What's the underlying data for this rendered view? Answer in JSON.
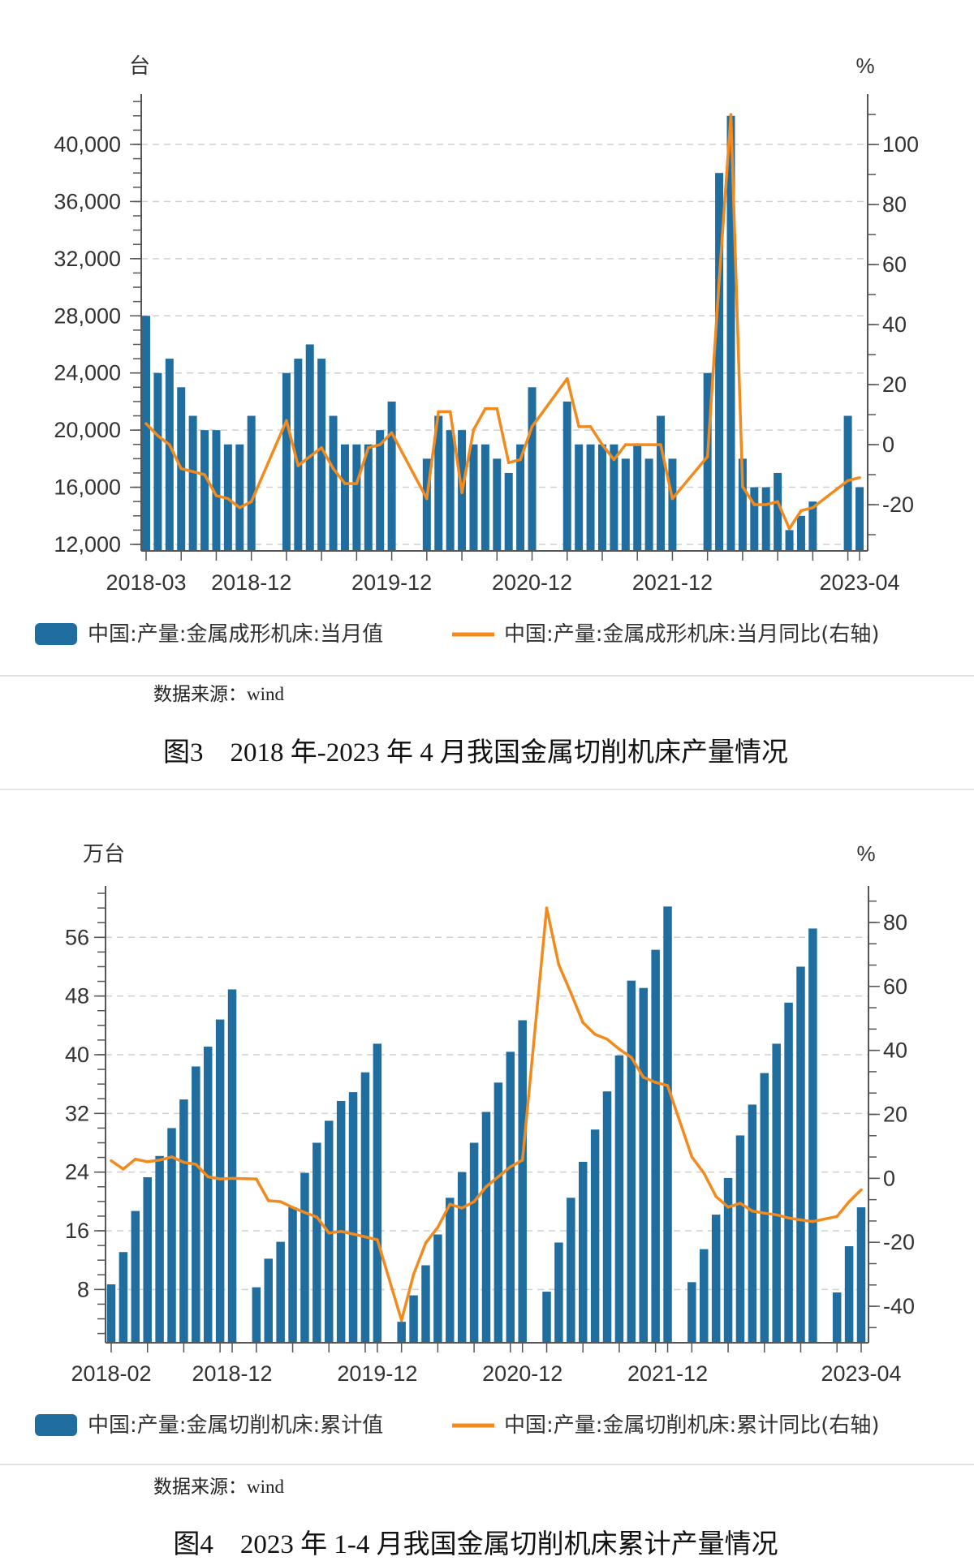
{
  "colors": {
    "bar": "#1f6e9f",
    "line": "#f28a1d",
    "grid": "#d0d0d0",
    "axis": "#555555"
  },
  "chart_data": [
    {
      "type": "bar+line",
      "left_unit": "台",
      "right_unit": "%",
      "ylim_left": [
        11545,
        43520
      ],
      "ylim_right": [
        -35.4,
        116.8
      ],
      "left_ticks": [
        {
          "value": 12000,
          "label": "12,000"
        },
        {
          "value": 16000,
          "label": "16,000"
        },
        {
          "value": 20000,
          "label": "20,000"
        },
        {
          "value": 24000,
          "label": "24,000"
        },
        {
          "value": 28000,
          "label": "28,000"
        },
        {
          "value": 32000,
          "label": "32,000"
        },
        {
          "value": 36000,
          "label": "36,000"
        },
        {
          "value": 40000,
          "label": "40,000"
        }
      ],
      "right_ticks": [
        {
          "value": -20,
          "label": "-20"
        },
        {
          "value": 0,
          "label": "0"
        },
        {
          "value": 20,
          "label": "20"
        },
        {
          "value": 40,
          "label": "40"
        },
        {
          "value": 60,
          "label": "60"
        },
        {
          "value": 80,
          "label": "80"
        },
        {
          "value": 100,
          "label": "100"
        }
      ],
      "x_labels": [
        "2018-03",
        "2018-12",
        "2019-12",
        "2020-12",
        "2021-12",
        "2023-04"
      ],
      "grid": true,
      "legend_position": "bottom",
      "x": [
        "2018-03",
        "2018-04",
        "2018-05",
        "2018-06",
        "2018-07",
        "2018-08",
        "2018-09",
        "2018-10",
        "2018-11",
        "2018-12",
        "2019-03",
        "2019-04",
        "2019-05",
        "2019-06",
        "2019-07",
        "2019-08",
        "2019-09",
        "2019-10",
        "2019-11",
        "2019-12",
        "2020-03",
        "2020-04",
        "2020-05",
        "2020-06",
        "2020-07",
        "2020-08",
        "2020-09",
        "2020-10",
        "2020-11",
        "2020-12",
        "2021-03",
        "2021-04",
        "2021-05",
        "2021-06",
        "2021-07",
        "2021-08",
        "2021-09",
        "2021-10",
        "2021-11",
        "2021-12",
        "2022-03",
        "2022-04",
        "2022-05",
        "2022-06",
        "2022-07",
        "2022-08",
        "2022-09",
        "2022-10",
        "2022-11",
        "2022-12",
        "2023-03",
        "2023-04"
      ],
      "series": [
        {
          "name": "中国:产量:金属成形机床:当月值",
          "type": "bar",
          "axis": "left",
          "values": [
            28000,
            24000,
            25000,
            23000,
            21000,
            20000,
            20000,
            19000,
            19000,
            21000,
            24000,
            25000,
            26000,
            25000,
            21000,
            19000,
            19000,
            19000,
            20000,
            22000,
            18000,
            21000,
            20000,
            20000,
            19000,
            19000,
            18000,
            17000,
            19000,
            23000,
            22000,
            19000,
            19000,
            19000,
            19000,
            18000,
            19000,
            18000,
            21000,
            18000,
            24000,
            38000,
            42000,
            18000,
            16000,
            16000,
            17000,
            13000,
            14000,
            15000,
            21000,
            16000
          ]
        },
        {
          "name": "中国:产量:金属成形机床:当月同比(右轴)",
          "type": "line",
          "axis": "right",
          "values": [
            7,
            3,
            0,
            -8,
            -9,
            -10,
            -17,
            -18,
            -21,
            -19,
            8,
            -7,
            -4,
            -1,
            -8,
            -13,
            -13,
            -1,
            0,
            4,
            -18,
            11,
            11,
            -16,
            5,
            12,
            12,
            -6,
            -5,
            6,
            22,
            6,
            6,
            0,
            -5,
            0,
            0,
            0,
            0,
            -18,
            -4,
            55,
            110,
            -14,
            -20,
            -20,
            -19,
            -28,
            -22,
            -21,
            -12,
            -11
          ]
        }
      ],
      "source": "数据来源：wind",
      "caption": "图3　2018 年-2023 年 4 月我国金属切削机床产量情况"
    },
    {
      "type": "bar+line",
      "left_unit": "万台",
      "right_unit": "%",
      "ylim_left": [
        0.74,
        63.0
      ],
      "ylim_right": [
        -51.4,
        91.4
      ],
      "left_ticks": [
        {
          "value": 8,
          "label": "8"
        },
        {
          "value": 16,
          "label": "16"
        },
        {
          "value": 24,
          "label": "24"
        },
        {
          "value": 32,
          "label": "32"
        },
        {
          "value": 40,
          "label": "40"
        },
        {
          "value": 48,
          "label": "48"
        },
        {
          "value": 56,
          "label": "56"
        }
      ],
      "right_ticks": [
        {
          "value": -40,
          "label": "-40"
        },
        {
          "value": -20,
          "label": "-20"
        },
        {
          "value": 0,
          "label": "0"
        },
        {
          "value": 20,
          "label": "20"
        },
        {
          "value": 40,
          "label": "40"
        },
        {
          "value": 60,
          "label": "60"
        },
        {
          "value": 80,
          "label": "80"
        }
      ],
      "x_labels": [
        "2018-02",
        "2018-12",
        "2019-12",
        "2020-12",
        "2021-12",
        "2023-04"
      ],
      "grid": true,
      "legend_position": "bottom",
      "x": [
        "2018-02",
        "2018-03",
        "2018-04",
        "2018-05",
        "2018-06",
        "2018-07",
        "2018-08",
        "2018-09",
        "2018-10",
        "2018-11",
        "2018-12",
        "2019-02",
        "2019-03",
        "2019-04",
        "2019-05",
        "2019-06",
        "2019-07",
        "2019-08",
        "2019-09",
        "2019-10",
        "2019-11",
        "2019-12",
        "2020-02",
        "2020-03",
        "2020-04",
        "2020-05",
        "2020-06",
        "2020-07",
        "2020-08",
        "2020-09",
        "2020-10",
        "2020-11",
        "2020-12",
        "2021-02",
        "2021-03",
        "2021-04",
        "2021-05",
        "2021-06",
        "2021-07",
        "2021-08",
        "2021-09",
        "2021-10",
        "2021-11",
        "2021-12",
        "2022-02",
        "2022-03",
        "2022-04",
        "2022-05",
        "2022-06",
        "2022-07",
        "2022-08",
        "2022-09",
        "2022-10",
        "2022-11",
        "2022-12",
        "2023-02",
        "2023-03",
        "2023-04"
      ],
      "series": [
        {
          "name": "中国:产量:金属切削机床:累计值",
          "type": "bar",
          "axis": "left",
          "values": [
            8.7,
            13.1,
            18.7,
            23.3,
            26.2,
            30.0,
            33.9,
            38.4,
            41.1,
            44.8,
            48.9,
            8.3,
            12.2,
            14.5,
            19.2,
            23.9,
            28.0,
            31.0,
            33.7,
            34.9,
            37.6,
            41.5,
            3.6,
            7.2,
            11.3,
            15.5,
            20.5,
            24.0,
            28.0,
            32.2,
            36.2,
            40.4,
            44.7,
            7.7,
            14.4,
            20.5,
            25.4,
            29.8,
            35.0,
            39.9,
            50.1,
            49.1,
            54.3,
            60.2,
            9.0,
            13.5,
            18.2,
            23.2,
            29.0,
            33.2,
            37.5,
            41.5,
            47.1,
            52.0,
            57.2,
            7.6,
            13.9,
            19.2
          ]
        },
        {
          "name": "中国:产量:金属切削机床:累计同比(右轴)",
          "type": "line",
          "axis": "right",
          "values": [
            5.5,
            2.9,
            6.0,
            5.2,
            5.7,
            6.7,
            5.0,
            4.4,
            0.5,
            -0.2,
            0,
            -0.2,
            -7.0,
            -7.3,
            -9.1,
            -10.7,
            -12.1,
            -17.1,
            -16.6,
            -17.4,
            -18.3,
            -19.2,
            -44.4,
            -30.0,
            -20.2,
            -15.3,
            -8.1,
            -9.3,
            -7.3,
            -2.6,
            0.5,
            3.6,
            5.7,
            84.5,
            66.8,
            58.0,
            48.7,
            45.0,
            43.5,
            40.4,
            37.8,
            31.6,
            30.0,
            29.0,
            6.7,
            1.6,
            -5.7,
            -9.0,
            -7.8,
            -10.2,
            -10.9,
            -11.4,
            -12.4,
            -13.0,
            -13.5,
            -11.9,
            -7.3,
            -3.6
          ]
        }
      ],
      "source": "数据来源：wind",
      "caption": "图4　2023 年 1-4 月我国金属切削机床累计产量情况"
    }
  ]
}
